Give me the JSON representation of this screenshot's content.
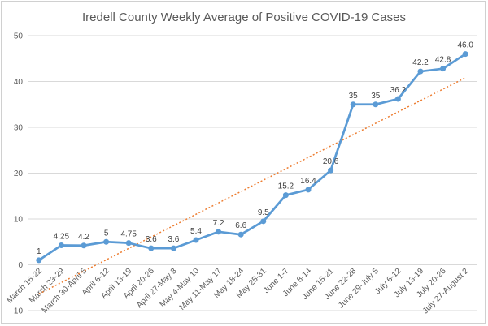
{
  "chart_data": {
    "type": "line",
    "title": "Iredell County Weekly Average of Positive COVID-19 Cases",
    "xlabel": "",
    "ylabel": "",
    "ylim": [
      -10,
      50
    ],
    "yticks": [
      -10,
      0,
      10,
      20,
      30,
      40,
      50
    ],
    "grid": true,
    "legend": "none",
    "categories": [
      "March 16-22",
      "March 23-29",
      "March 30-April 5",
      "April 6-12",
      "April 13-19",
      "April 20-26",
      "April 27-May 3",
      "May 4-May 10",
      "May 11-May 17",
      "May 18-24",
      "May 25-31",
      "June 1-7",
      "June 8-14",
      "June 15-21",
      "June 22-28",
      "June 29-July 5",
      "July 6-12",
      "July 13-19",
      "July 20-26",
      "July 27-August 2"
    ],
    "series": [
      {
        "values": [
          1,
          4.25,
          4.2,
          5,
          4.75,
          3.6,
          3.6,
          5.4,
          7.2,
          6.6,
          9.5,
          15.2,
          16.4,
          20.6,
          35,
          35,
          36.2,
          42.2,
          42.8,
          46.0
        ],
        "labels": [
          "1",
          "4.25",
          "4.2",
          "5",
          "4.75",
          "3.6",
          "3.6",
          "5.4",
          "7.2",
          "6.6",
          "9.5",
          "15.2",
          "16.4",
          "20.6",
          "35",
          "35",
          "36.2",
          "42.2",
          "42.8",
          "46.0"
        ],
        "color": "#5B9BD5"
      }
    ],
    "trendline": {
      "type": "linear",
      "color": "#ED7D31",
      "style": "dotted"
    },
    "gridline_color": "#d9d9d9"
  }
}
